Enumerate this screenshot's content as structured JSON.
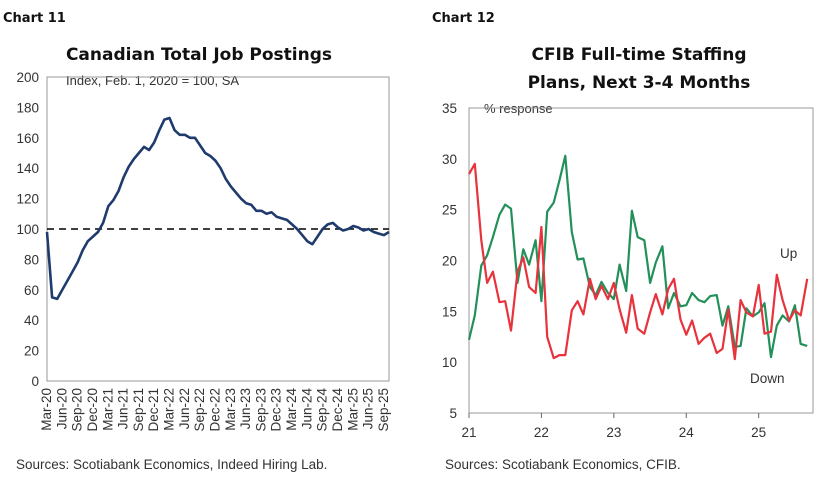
{
  "chart11": {
    "header": "Chart 11",
    "source": "Sources: Scotiabank Economics, Indeed Hiring Lab.",
    "colors": {
      "line": "#1f3b6e",
      "ref": "#000000"
    }
  },
  "chart12": {
    "header": "Chart 12",
    "source": "Sources: Scotiabank Economics, CFIB.",
    "colors": {
      "up": "#23905a",
      "down": "#e8323c"
    }
  },
  "chart_data": [
    {
      "type": "line",
      "title": "Canadian Total Job Postings",
      "subtitle": "Index, Feb. 1, 2020 = 100, SA",
      "xlabel": "",
      "ylabel": "",
      "ylim": [
        0,
        200
      ],
      "yticks": [
        0,
        20,
        40,
        60,
        80,
        100,
        120,
        140,
        160,
        180,
        200
      ],
      "xticks": [
        "Mar-20",
        "Jun-20",
        "Sep-20",
        "Dec-20",
        "Mar-21",
        "Jun-21",
        "Sep-21",
        "Dec-21",
        "Mar-22",
        "Jun-22",
        "Sep-22",
        "Dec-22",
        "Mar-23",
        "Jun-23",
        "Sep-23",
        "Dec-23",
        "Mar-24",
        "Jun-24",
        "Sep-24",
        "Dec-24",
        "Mar-25",
        "Jun-25",
        "Sep-25"
      ],
      "reference_line": 100,
      "series": [
        {
          "x": [
            "2020-03",
            "2020-04",
            "2020-05",
            "2020-06",
            "2020-07",
            "2020-08",
            "2020-09",
            "2020-10",
            "2020-11",
            "2020-12",
            "2021-01",
            "2021-02",
            "2021-03",
            "2021-04",
            "2021-05",
            "2021-06",
            "2021-07",
            "2021-08",
            "2021-09",
            "2021-10",
            "2021-11",
            "2021-12",
            "2022-01",
            "2022-02",
            "2022-03",
            "2022-04",
            "2022-05",
            "2022-06",
            "2022-07",
            "2022-08",
            "2022-09",
            "2022-10",
            "2022-11",
            "2022-12",
            "2023-01",
            "2023-02",
            "2023-03",
            "2023-04",
            "2023-05",
            "2023-06",
            "2023-07",
            "2023-08",
            "2023-09",
            "2023-10",
            "2023-11",
            "2023-12",
            "2024-01",
            "2024-02",
            "2024-03",
            "2024-04",
            "2024-05",
            "2024-06",
            "2024-07",
            "2024-08",
            "2024-09",
            "2024-10",
            "2024-11",
            "2024-12",
            "2025-01",
            "2025-02",
            "2025-03",
            "2025-04",
            "2025-05",
            "2025-06",
            "2025-07",
            "2025-08",
            "2025-09",
            "2025-10"
          ],
          "values": [
            98,
            55,
            54,
            60,
            66,
            72,
            78,
            86,
            92,
            95,
            98,
            104,
            115,
            119,
            125,
            134,
            141,
            146,
            150,
            154,
            152,
            157,
            165,
            172,
            173,
            165,
            162,
            162,
            160,
            160,
            155,
            150,
            148,
            145,
            140,
            133,
            128,
            124,
            120,
            117,
            116,
            112,
            112,
            110,
            111,
            108,
            107,
            106,
            103,
            100,
            96,
            92,
            90,
            95,
            100,
            103,
            104,
            101,
            99,
            100,
            102,
            101,
            99,
            100,
            98,
            97,
            96,
            98
          ]
        }
      ]
    },
    {
      "type": "line",
      "title": "CFIB Full-time Staffing Plans, Next 3-4 Months",
      "subtitle": "% response",
      "xlabel": "",
      "ylabel": "",
      "ylim": [
        5,
        35
      ],
      "yticks": [
        5,
        10,
        15,
        20,
        25,
        30,
        35
      ],
      "xticks": [
        "21",
        "22",
        "23",
        "24",
        "25"
      ],
      "xlim": [
        2021,
        2025.75
      ],
      "series": [
        {
          "name": "Up",
          "x": [
            2021.0,
            2021.08,
            2021.17,
            2021.25,
            2021.33,
            2021.42,
            2021.5,
            2021.58,
            2021.67,
            2021.75,
            2021.83,
            2021.92,
            2022.0,
            2022.08,
            2022.17,
            2022.25,
            2022.33,
            2022.42,
            2022.5,
            2022.58,
            2022.67,
            2022.75,
            2022.83,
            2022.92,
            2023.0,
            2023.08,
            2023.17,
            2023.25,
            2023.33,
            2023.42,
            2023.5,
            2023.58,
            2023.67,
            2023.75,
            2023.83,
            2023.92,
            2024.0,
            2024.08,
            2024.17,
            2024.25,
            2024.33,
            2024.42,
            2024.5,
            2024.58,
            2024.67,
            2024.75,
            2024.83,
            2024.92,
            2025.0,
            2025.08,
            2025.17,
            2025.25,
            2025.33,
            2025.42,
            2025.5,
            2025.58,
            2025.67
          ],
          "values": [
            12.2,
            14.6,
            19.5,
            20.5,
            22.3,
            24.5,
            25.5,
            25.1,
            17.8,
            21.1,
            19.6,
            22.0,
            16.0,
            24.8,
            25.7,
            27.9,
            30.3,
            22.8,
            20.1,
            20.2,
            17.4,
            16.6,
            17.9,
            16.8,
            16.2,
            19.6,
            17.0,
            24.9,
            22.3,
            22.0,
            17.8,
            19.8,
            21.4,
            15.3,
            16.8,
            15.5,
            15.6,
            16.8,
            16.1,
            15.9,
            16.5,
            16.6,
            13.6,
            15.5,
            11.5,
            11.6,
            15.3,
            14.5,
            14.9,
            15.8,
            10.5,
            13.6,
            14.6,
            14.0,
            15.6,
            11.8,
            11.6
          ]
        },
        {
          "name": "Down",
          "x": [
            2021.0,
            2021.08,
            2021.17,
            2021.25,
            2021.33,
            2021.42,
            2021.5,
            2021.58,
            2021.67,
            2021.75,
            2021.83,
            2021.92,
            2022.0,
            2022.08,
            2022.17,
            2022.25,
            2022.33,
            2022.42,
            2022.5,
            2022.58,
            2022.67,
            2022.75,
            2022.83,
            2022.92,
            2023.0,
            2023.08,
            2023.17,
            2023.25,
            2023.33,
            2023.42,
            2023.5,
            2023.58,
            2023.67,
            2023.75,
            2023.83,
            2023.92,
            2024.0,
            2024.08,
            2024.17,
            2024.25,
            2024.33,
            2024.42,
            2024.5,
            2024.58,
            2024.67,
            2024.75,
            2024.83,
            2024.92,
            2025.0,
            2025.08,
            2025.17,
            2025.25,
            2025.33,
            2025.42,
            2025.5,
            2025.58,
            2025.67
          ],
          "values": [
            28.5,
            29.5,
            22.0,
            17.8,
            18.9,
            15.9,
            16.0,
            13.1,
            18.9,
            20.3,
            17.4,
            16.8,
            23.3,
            12.5,
            10.4,
            10.7,
            10.7,
            15.1,
            16.0,
            14.7,
            18.2,
            16.2,
            17.5,
            16.2,
            17.8,
            15.2,
            12.9,
            16.6,
            13.3,
            12.8,
            14.9,
            16.7,
            14.7,
            17.2,
            18.2,
            14.2,
            12.7,
            14.1,
            11.8,
            12.4,
            12.8,
            10.9,
            11.3,
            15.2,
            10.3,
            16.1,
            14.9,
            14.5,
            17.6,
            12.8,
            13.0,
            18.6,
            16.1,
            14.1,
            15.1,
            14.6,
            18.2
          ]
        }
      ]
    }
  ]
}
